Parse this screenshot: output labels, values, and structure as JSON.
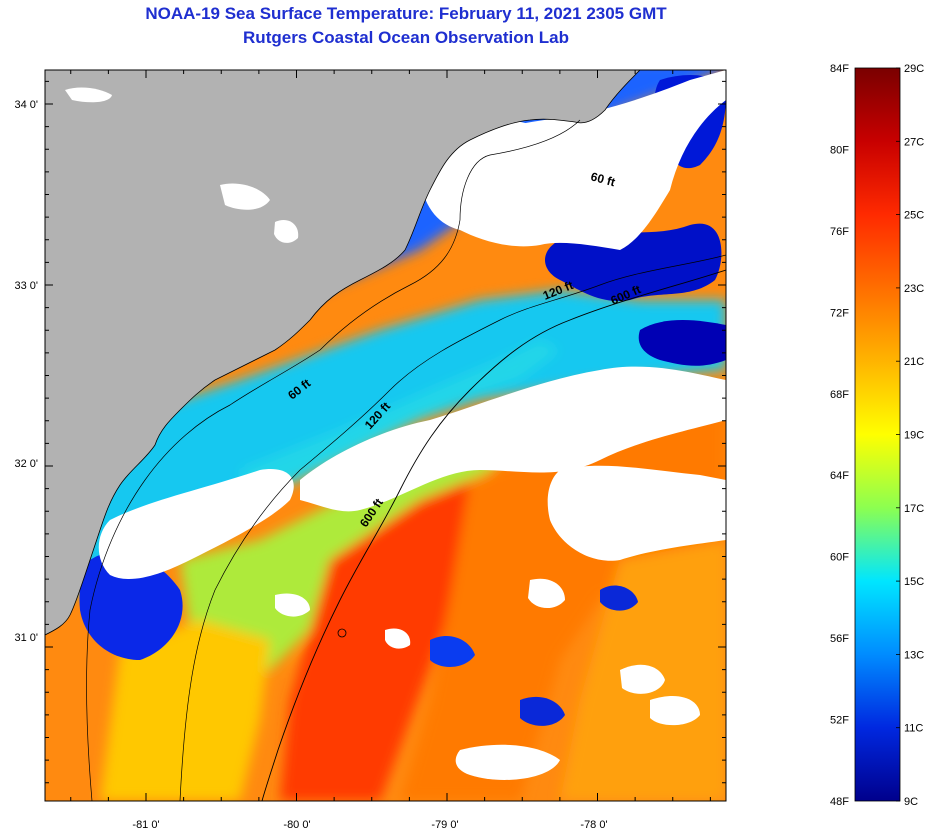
{
  "title_line1": "NOAA-19 Sea Surface Temperature:  February 11, 2021 2305 GMT",
  "title_line2": "Rutgers Coastal Ocean Observation Lab",
  "lat_labels": [
    "34 0'",
    "33 0'",
    "32 0'",
    "31 0'"
  ],
  "lon_labels": [
    "-81 0'",
    "-80 0'",
    "-79 0'",
    "-78 0'"
  ],
  "isobaths": [
    "60 ft",
    "120 ft",
    "600 ft",
    "60 ft",
    "120 ft",
    "600 ft"
  ],
  "colorbar": {
    "fahrenheit": [
      "84F",
      "80F",
      "76F",
      "72F",
      "68F",
      "64F",
      "60F",
      "56F",
      "52F",
      "48F"
    ],
    "celsius": [
      "29C",
      "27C",
      "25C",
      "23C",
      "21C",
      "19C",
      "17C",
      "15C",
      "13C",
      "11C",
      "9C"
    ],
    "colors": [
      "#7a0000",
      "#c80000",
      "#ff2a00",
      "#ff6e00",
      "#ffb400",
      "#ffff00",
      "#8cff50",
      "#00e6ff",
      "#008cff",
      "#0028e0",
      "#00008c"
    ]
  },
  "palette": {
    "land": "#b2b2b2",
    "cloud": "#ffffff",
    "title": "#1f2fd0"
  }
}
